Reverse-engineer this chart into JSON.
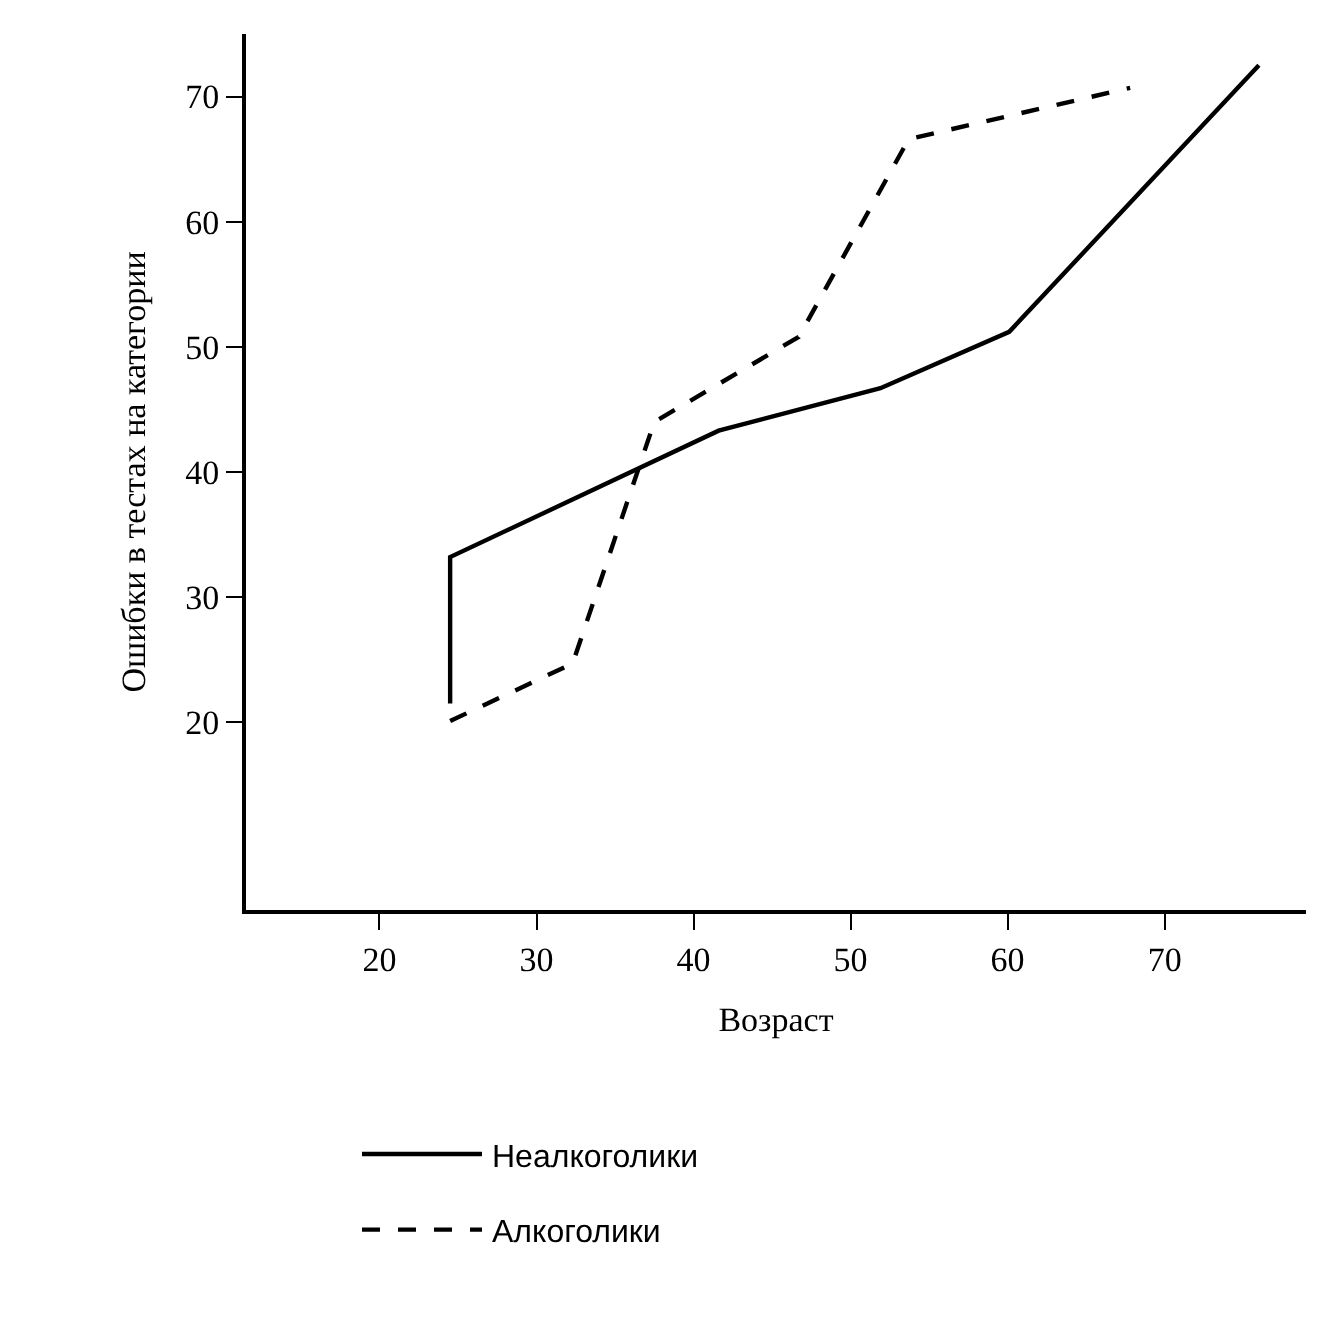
{
  "chart_data": {
    "type": "line",
    "xlabel": "Возраст",
    "ylabel": "Ошибки в тестах на категории",
    "xlim": [
      11.5,
      79
    ],
    "xticks": [
      20,
      30,
      40,
      50,
      60,
      70
    ],
    "ylim": [
      5,
      75
    ],
    "yticks": [
      20,
      30,
      40,
      50,
      60,
      70
    ],
    "legend": "bottom",
    "marker": "none",
    "series": [
      {
        "name": "Неалкоголики",
        "color": "#000000",
        "line_style": "solid",
        "x": [
          24.5,
          24.5,
          41.6,
          51.9,
          60.1,
          76
        ],
        "values": [
          21.5,
          33.2,
          43.3,
          46.7,
          51.2,
          72.5
        ]
      },
      {
        "name": "Алкоголики",
        "color": "#000000",
        "line_style": "dashed",
        "x": [
          24.5,
          32.3,
          37.5,
          46.7,
          53.7,
          67.8
        ],
        "values": [
          20.1,
          24.7,
          44,
          50.8,
          66.6,
          70.7
        ]
      }
    ]
  }
}
